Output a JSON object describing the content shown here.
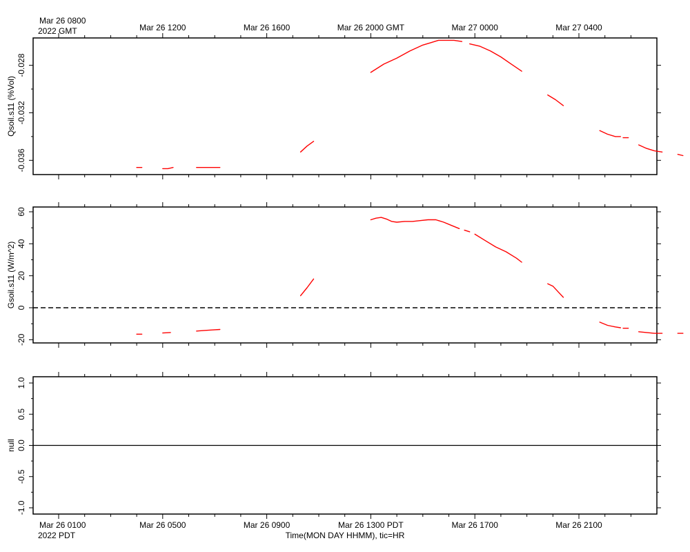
{
  "top_axis": {
    "first_label_line1": "Mar 26 0800",
    "first_label_line2": "2022 GMT",
    "labels": [
      "Mar 26 1200",
      "Mar 26 1600",
      "Mar 26 2000 GMT",
      "Mar 27 0000",
      "Mar 27 0400"
    ]
  },
  "bottom_axis": {
    "first_label_line1": "Mar 26 0100",
    "first_label_line2": "2022 PDT",
    "labels": [
      "Mar 26 0500",
      "Mar 26 0900",
      "Mar 26 1300 PDT",
      "Mar 26 1700",
      "Mar 26 2100"
    ],
    "title": "Time(MON DAY HHMM), tic=HR"
  },
  "colors": {
    "series": "#ff0000",
    "axes": "#000000"
  },
  "chart_data": [
    {
      "type": "line",
      "ylabel": "Qsoil.s11 (%Vol)",
      "ylim": [
        -0.0372,
        -0.0257
      ],
      "ytick_labels": [
        "-0.028",
        "-0.032",
        "-0.036"
      ],
      "ytick_values": [
        -0.028,
        -0.032,
        -0.036
      ],
      "xunit": "hours from Mar 26 0100 PDT",
      "xlim": [
        0,
        23.3
      ],
      "segments": [
        {
          "x": [
            3.0,
            3.2
          ],
          "y": [
            -0.0366,
            -0.0366
          ]
        },
        {
          "x": [
            4.0,
            4.2,
            4.4
          ],
          "y": [
            -0.0367,
            -0.0367,
            -0.0366
          ]
        },
        {
          "x": [
            5.3,
            5.6,
            5.9,
            6.2
          ],
          "y": [
            -0.0366,
            -0.0366,
            -0.0366,
            -0.0366
          ]
        },
        {
          "x": [
            9.3,
            9.55,
            9.8
          ],
          "y": [
            -0.0353,
            -0.0348,
            -0.0344
          ]
        },
        {
          "x": [
            12.0,
            12.5,
            13.0,
            13.5,
            14.0,
            14.3,
            14.6,
            14.9,
            15.2,
            15.5
          ],
          "y": [
            -0.0286,
            -0.0279,
            -0.0274,
            -0.0268,
            -0.0263,
            -0.0261,
            -0.0259,
            -0.0259,
            -0.0259,
            -0.026
          ]
        },
        {
          "x": [
            15.8,
            16.2,
            16.6,
            17.0,
            17.4,
            17.8
          ],
          "y": [
            -0.0262,
            -0.0264,
            -0.0268,
            -0.0273,
            -0.0279,
            -0.0285
          ]
        },
        {
          "x": [
            18.8,
            19.1,
            19.4
          ],
          "y": [
            -0.0305,
            -0.0309,
            -0.0314
          ]
        },
        {
          "x": [
            20.8,
            21.1,
            21.4,
            21.6
          ],
          "y": [
            -0.0335,
            -0.0338,
            -0.034,
            -0.034
          ]
        },
        {
          "x": [
            21.7,
            21.9
          ],
          "y": [
            -0.0341,
            -0.0341
          ]
        },
        {
          "x": [
            22.3,
            22.6,
            22.9,
            23.2
          ],
          "y": [
            -0.0347,
            -0.035,
            -0.0352,
            -0.0353
          ]
        },
        {
          "x": [
            23.8,
            24.0
          ],
          "y": [
            -0.0355,
            -0.0356
          ]
        }
      ]
    },
    {
      "type": "line",
      "ylabel": "Gsoil.s11 (W/m^2)",
      "ylim": [
        -22,
        63
      ],
      "ytick_labels": [
        "60",
        "40",
        "20",
        "0",
        "-20"
      ],
      "ytick_values": [
        60,
        40,
        20,
        0,
        -20
      ],
      "xunit": "hours from Mar 26 0100 PDT",
      "xlim": [
        0,
        23.3
      ],
      "reference_line": 0,
      "segments": [
        {
          "x": [
            3.0,
            3.2
          ],
          "y": [
            -16.5,
            -16.5
          ]
        },
        {
          "x": [
            4.0,
            4.3
          ],
          "y": [
            -15.8,
            -15.5
          ]
        },
        {
          "x": [
            5.3,
            5.6,
            5.9,
            6.2
          ],
          "y": [
            -14.6,
            -14.2,
            -13.9,
            -13.6
          ]
        },
        {
          "x": [
            9.3,
            9.55,
            9.8
          ],
          "y": [
            7.5,
            12.5,
            18
          ]
        },
        {
          "x": [
            12.0,
            12.2,
            12.4,
            12.6,
            12.8,
            13.0,
            13.3,
            13.6,
            13.9,
            14.2,
            14.5,
            14.8,
            15.1,
            15.4
          ],
          "y": [
            55,
            56,
            56.5,
            55.5,
            54,
            53.5,
            54,
            54,
            54.5,
            55,
            55,
            53.5,
            51.5,
            49.5
          ]
        },
        {
          "x": [
            15.6,
            15.8
          ],
          "y": [
            48.5,
            47.5
          ]
        },
        {
          "x": [
            16.0,
            16.4,
            16.8,
            17.2,
            17.6,
            17.8
          ],
          "y": [
            46,
            42,
            38,
            35,
            31,
            28.5
          ]
        },
        {
          "x": [
            18.8,
            19.0,
            19.2,
            19.4
          ],
          "y": [
            15,
            13.5,
            10,
            6.5
          ]
        },
        {
          "x": [
            20.8,
            21.1,
            21.4,
            21.6
          ],
          "y": [
            -9,
            -11,
            -12,
            -12.5
          ]
        },
        {
          "x": [
            21.7,
            21.9
          ],
          "y": [
            -12.8,
            -12.8
          ]
        },
        {
          "x": [
            22.3,
            22.6,
            22.9,
            23.2
          ],
          "y": [
            -15,
            -15.5,
            -16,
            -16
          ]
        },
        {
          "x": [
            23.8,
            24.0
          ],
          "y": [
            -16,
            -16
          ]
        }
      ]
    },
    {
      "type": "line",
      "ylabel": "null",
      "ylim": [
        -1.1,
        1.1
      ],
      "ytick_labels": [
        "1.0",
        "0.5",
        "0.0",
        "-0.5",
        "-1.0"
      ],
      "ytick_values": [
        1.0,
        0.5,
        0.0,
        -0.5,
        -1.0
      ],
      "reference_line": 0,
      "segments": []
    }
  ]
}
